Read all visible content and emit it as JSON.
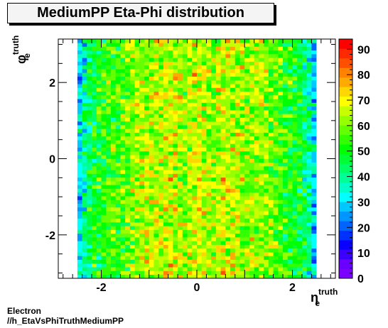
{
  "title": "MediumPP Eta-Phi distribution",
  "footer": {
    "line1": "Electron",
    "line2": "//h_EtaVsPhiTruthMediumPP"
  },
  "chart_data": {
    "type": "heatmap",
    "title": "MediumPP Eta-Phi distribution",
    "xlabel": {
      "base": "η",
      "sup": "truth",
      "sub": "e"
    },
    "ylabel": {
      "base": "φ",
      "sup": "truth",
      "sub": "e"
    },
    "xlim": [
      -2.9,
      2.9
    ],
    "ylim": [
      -3.14,
      3.14
    ],
    "x_ticks": [
      -2,
      0,
      2
    ],
    "y_ticks": [
      -2,
      0,
      2
    ],
    "x_bins": {
      "min": -2.5,
      "max": 2.5,
      "count": 50
    },
    "y_bins": {
      "min": -3.14,
      "max": 3.14,
      "count": 64
    },
    "z_range": [
      0,
      94
    ],
    "colorbar_ticks": [
      0,
      10,
      20,
      30,
      40,
      50,
      60,
      70,
      80,
      90
    ],
    "profile_note": "counts ~30 at |eta|>2.4, ~45-55 near |eta|~1.8-2.2, ~60-75 in central region; uniform in phi",
    "eta_mean_profile": [
      30,
      38,
      44,
      48,
      50,
      52,
      55,
      55,
      54,
      56,
      58,
      60,
      61,
      62,
      63,
      64,
      65,
      64,
      66,
      67,
      66,
      64,
      62,
      64,
      66,
      67,
      65,
      63,
      62,
      64,
      66,
      66,
      65,
      64,
      64,
      63,
      62,
      63,
      61,
      60,
      58,
      56,
      55,
      53,
      52,
      50,
      48,
      44,
      38,
      30
    ],
    "palette": [
      "#7b00ff",
      "#6a00ff",
      "#3c00ff",
      "#0a00ff",
      "#0032ff",
      "#0064ff",
      "#0096ff",
      "#00c8ff",
      "#00ffff",
      "#00ffc8",
      "#00ff96",
      "#00ff64",
      "#00ff32",
      "#00ff00",
      "#32ff00",
      "#64ff00",
      "#96ff00",
      "#c8ff00",
      "#ffff00",
      "#ffd700",
      "#ffaa00",
      "#ff8200",
      "#ff5000",
      "#ff2800",
      "#ff0000"
    ]
  }
}
